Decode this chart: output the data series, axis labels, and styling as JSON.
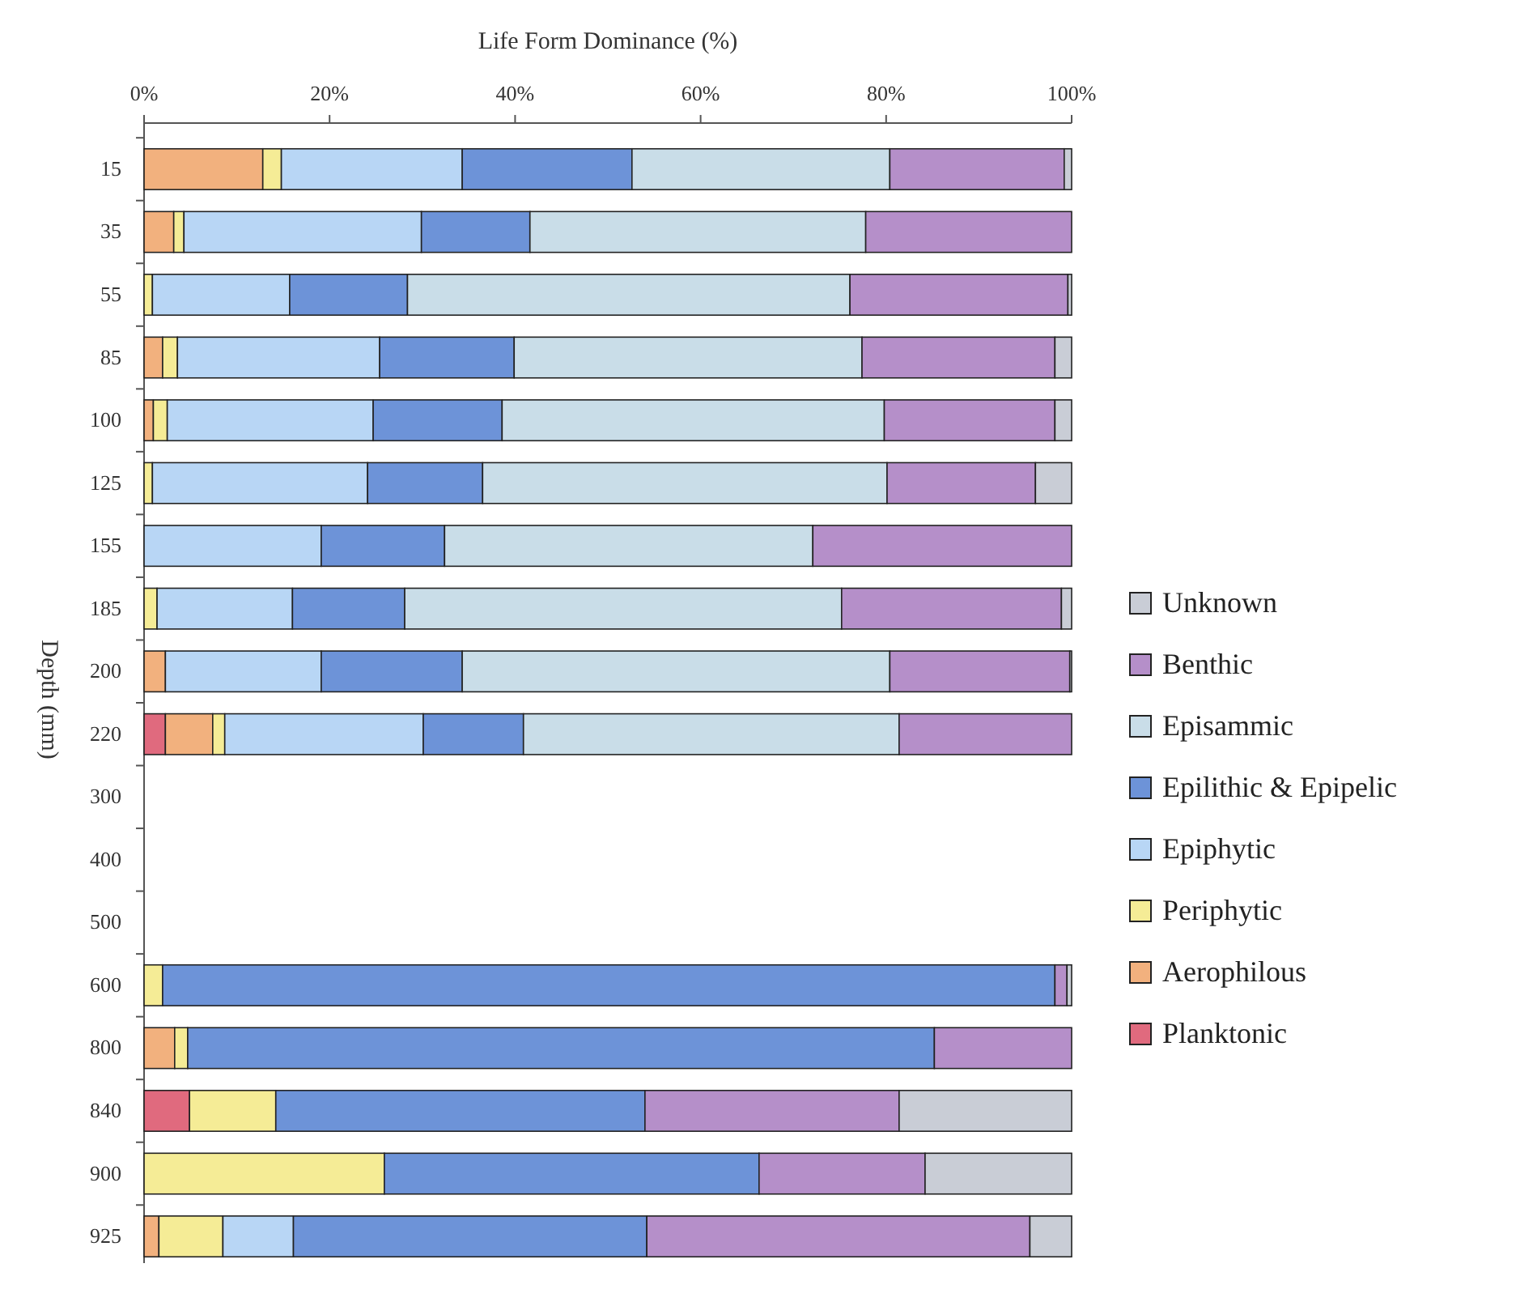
{
  "chart_data": {
    "type": "bar",
    "orientation": "horizontal",
    "stacked": true,
    "xlabel": "Life Form Dominance (%)",
    "ylabel": "Depth (mm)",
    "categories": [
      "15",
      "35",
      "55",
      "85",
      "100",
      "125",
      "155",
      "185",
      "200",
      "220",
      "300",
      "400",
      "500",
      "600",
      "800",
      "840",
      "900",
      "925"
    ],
    "xlim": [
      0,
      100
    ],
    "xticks": [
      {
        "value": 0,
        "label": "0%"
      },
      {
        "value": 20,
        "label": "20%"
      },
      {
        "value": 40,
        "label": "40%"
      },
      {
        "value": 60,
        "label": "60%"
      },
      {
        "value": 80,
        "label": "80%"
      },
      {
        "value": 100,
        "label": "100%"
      }
    ],
    "legend": "right",
    "series": [
      {
        "name": "Planktonic",
        "color": "#e06a7e",
        "values": [
          0,
          0,
          0,
          0,
          0,
          0,
          0,
          0,
          0,
          2.3,
          null,
          null,
          null,
          0,
          0,
          4.9,
          0,
          0
        ]
      },
      {
        "name": "Aerophilous",
        "color": "#f2b17e",
        "values": [
          12.8,
          3.2,
          0,
          2.0,
          1.0,
          0,
          0,
          0,
          2.3,
          5.1,
          null,
          null,
          null,
          0,
          3.3,
          0,
          0,
          1.6
        ]
      },
      {
        "name": "Periphytic",
        "color": "#f5ec96",
        "values": [
          2.0,
          1.1,
          0.9,
          1.6,
          1.5,
          0.9,
          0,
          1.4,
          0,
          1.3,
          null,
          null,
          null,
          2.0,
          1.4,
          9.3,
          25.9,
          6.9
        ]
      },
      {
        "name": "Epiphytic",
        "color": "#b8d6f5",
        "values": [
          19.5,
          25.6,
          14.8,
          21.8,
          22.2,
          23.2,
          19.1,
          14.6,
          16.8,
          21.4,
          null,
          null,
          null,
          0,
          0,
          0,
          0,
          7.6
        ]
      },
      {
        "name": "Epilithic & Epipelic",
        "color": "#6d93d8",
        "values": [
          18.3,
          11.7,
          12.7,
          14.5,
          13.9,
          12.4,
          13.3,
          12.1,
          15.2,
          10.8,
          null,
          null,
          null,
          96.2,
          80.5,
          39.8,
          40.4,
          38.1
        ]
      },
      {
        "name": "Episammic",
        "color": "#c9dde8",
        "values": [
          27.8,
          36.2,
          47.7,
          37.5,
          41.2,
          43.6,
          39.7,
          47.1,
          46.1,
          40.5,
          null,
          null,
          null,
          0,
          0,
          0,
          0,
          0
        ]
      },
      {
        "name": "Benthic",
        "color": "#b58fc9",
        "values": [
          18.8,
          22.2,
          23.5,
          20.8,
          18.4,
          16.0,
          27.9,
          23.7,
          19.4,
          18.6,
          null,
          null,
          null,
          1.3,
          14.8,
          27.4,
          17.9,
          41.3
        ]
      },
      {
        "name": "Unknown",
        "color": "#c9cdd6",
        "values": [
          0.8,
          0,
          0.4,
          1.8,
          1.8,
          3.9,
          0,
          1.1,
          0.2,
          0,
          null,
          null,
          null,
          0.5,
          0,
          18.6,
          15.8,
          4.5
        ]
      }
    ]
  }
}
